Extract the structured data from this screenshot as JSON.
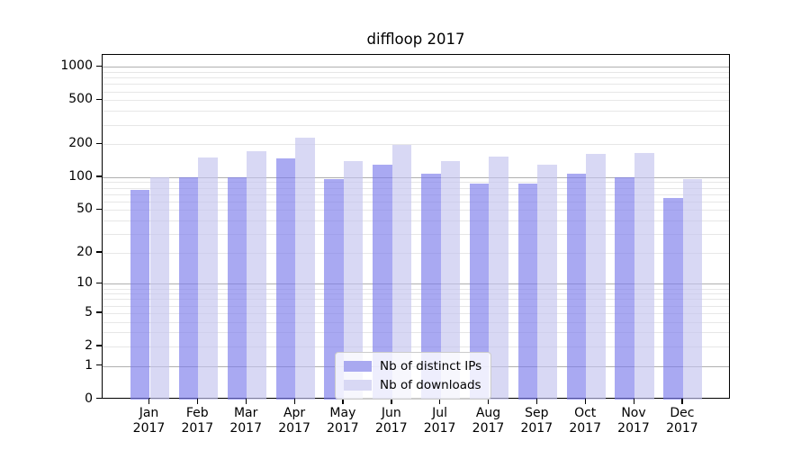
{
  "chart_data": {
    "type": "bar",
    "title": "diffloop 2017",
    "categories": [
      "Jan 2017",
      "Feb 2017",
      "Mar 2017",
      "Apr 2017",
      "May 2017",
      "Jun 2017",
      "Jul 2017",
      "Aug 2017",
      "Sep 2017",
      "Oct 2017",
      "Nov 2017",
      "Dec 2017"
    ],
    "x_tick_line1": [
      "Jan",
      "Feb",
      "Mar",
      "Apr",
      "May",
      "Jun",
      "Jul",
      "Aug",
      "Sep",
      "Oct",
      "Nov",
      "Dec"
    ],
    "x_tick_line2": "2017",
    "series": [
      {
        "name": "Nb of distinct IPs",
        "color": "#a9a9f0",
        "fill": "rgba(123,123,235,0.65)",
        "values": [
          76,
          100,
          100,
          148,
          96,
          131,
          107,
          88,
          87,
          107,
          100,
          64
        ]
      },
      {
        "name": "Nb of downloads",
        "color": "#d8d8f4",
        "fill": "rgba(195,195,238,0.65)",
        "values": [
          100,
          150,
          174,
          227,
          141,
          195,
          140,
          154,
          129,
          162,
          167,
          96
        ]
      }
    ],
    "y_scale": "log10(1+v)",
    "y_ticks": [
      0,
      1,
      2,
      5,
      10,
      20,
      50,
      100,
      200,
      500,
      1000
    ],
    "y_major_gridlines": [
      1,
      10,
      100,
      1000
    ],
    "ylim": [
      0,
      1283
    ],
    "grid": {
      "major_color": "#b0b0b0",
      "minor_color": "#e7e7e7"
    },
    "legend_position": "bottom-center",
    "xlabel": "",
    "ylabel": ""
  }
}
